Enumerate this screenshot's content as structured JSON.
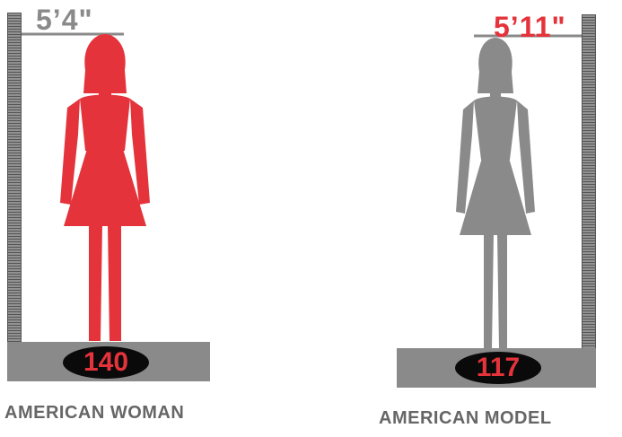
{
  "colors": {
    "accent_red": "#e4333a",
    "figure_gray": "#8a8a8a",
    "scale_gray": "#555555",
    "badge_black": "#0a0a0a",
    "caption_gray": "#666666"
  },
  "american_woman": {
    "height_label": "5’4\"",
    "weight_label": "140",
    "caption": "AMERICAN WOMAN",
    "height_inches": 64,
    "weight_lbs": 140,
    "figure_color": "#e4333a",
    "height_label_color": "#8a8a8a"
  },
  "american_model": {
    "height_label": "5’11\"",
    "weight_label": "117",
    "caption": "AMERICAN MODEL",
    "height_inches": 71,
    "weight_lbs": 117,
    "figure_color": "#8a8a8a",
    "height_label_color": "#e4333a"
  }
}
